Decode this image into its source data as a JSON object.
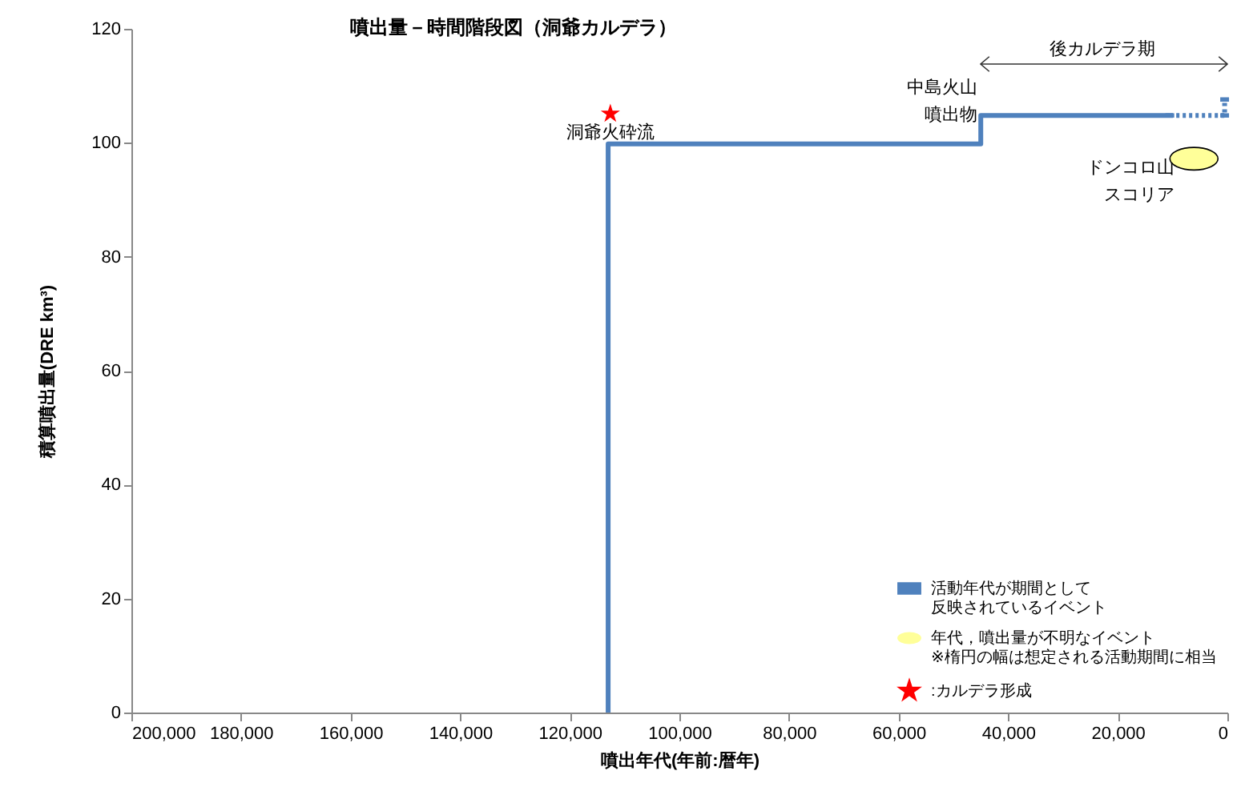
{
  "chart_data": {
    "type": "line",
    "title": "噴出量－時間階段図（洞爺カルデラ）",
    "xlabel": "噴出年代(年前:暦年)",
    "ylabel": "積算噴出量(DRE km³)",
    "xlim": [
      200000,
      0
    ],
    "ylim": [
      0,
      120
    ],
    "xticks": [
      {
        "value": 200000,
        "label": "200,000"
      },
      {
        "value": 180000,
        "label": "180,000"
      },
      {
        "value": 160000,
        "label": "160,000"
      },
      {
        "value": 140000,
        "label": "140,000"
      },
      {
        "value": 120000,
        "label": "120,000"
      },
      {
        "value": 100000,
        "label": "100,000"
      },
      {
        "value": 80000,
        "label": "80,000"
      },
      {
        "value": 60000,
        "label": "60,000"
      },
      {
        "value": 40000,
        "label": "40,000"
      },
      {
        "value": 20000,
        "label": "20,000"
      },
      0
    ],
    "yticks": [
      0,
      20,
      40,
      60,
      80,
      100,
      120
    ],
    "legend": "bottom right",
    "series": [
      {
        "color": "#4f81bd",
        "x": [
          113000,
          113000,
          45000,
          45000,
          10500
        ],
        "values": [
          0,
          99.8,
          99.8,
          104.8,
          104.8
        ]
      },
      {
        "name": "活動年代が期間として反映されているイベント",
        "color": "#4f81bd",
        "line_style": "dotted",
        "x": [
          10500,
          500,
          500
        ],
        "values": [
          104.8,
          104.8,
          107.6
        ]
      },
      {
        "type": "scatter",
        "name": "年代，噴出量が不明なイベント※楕円の幅は想定される活動期間に相当",
        "color": "#ffff99",
        "x": [
          6100
        ],
        "values": [
          97.2
        ]
      },
      {
        "type": "scatter",
        "name": ":カルデラ形成",
        "color": "#ff0000",
        "marker": "star",
        "x": [
          112600
        ],
        "values": [
          105.1
        ]
      }
    ],
    "annotations": [
      "洞爺火砕流",
      "中島火山噴出物",
      "ドンコロ山スコリア",
      "後カルデラ期"
    ]
  }
}
